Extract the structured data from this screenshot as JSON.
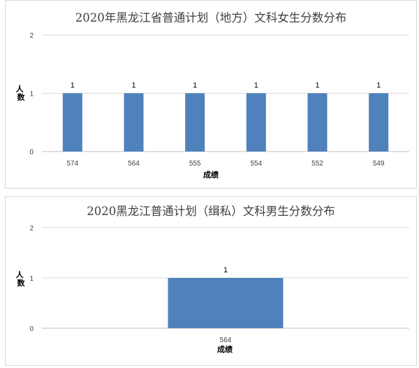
{
  "chart_data": [
    {
      "type": "bar",
      "title": "2020年黑龙江省普通计划（地方）文科女生分数分布",
      "xlabel": "成绩",
      "ylabel": "人数",
      "categories": [
        "574",
        "564",
        "555",
        "554",
        "552",
        "549"
      ],
      "values": [
        1,
        1,
        1,
        1,
        1,
        1
      ],
      "yticks": [
        "0",
        "1",
        "2"
      ],
      "ylim": [
        0,
        2
      ],
      "grid": true,
      "bar_color": "#4f81bd",
      "data_labels": [
        "1",
        "1",
        "1",
        "1",
        "1",
        "1"
      ]
    },
    {
      "type": "bar",
      "title": "2020黑龙江普通计划（缉私）文科男生分数分布",
      "xlabel": "成绩",
      "ylabel": "人数",
      "categories": [
        "564"
      ],
      "values": [
        1
      ],
      "yticks": [
        "0",
        "1",
        "2"
      ],
      "ylim": [
        0,
        2
      ],
      "grid": true,
      "bar_color": "#4f81bd",
      "data_labels": [
        "1"
      ]
    }
  ]
}
